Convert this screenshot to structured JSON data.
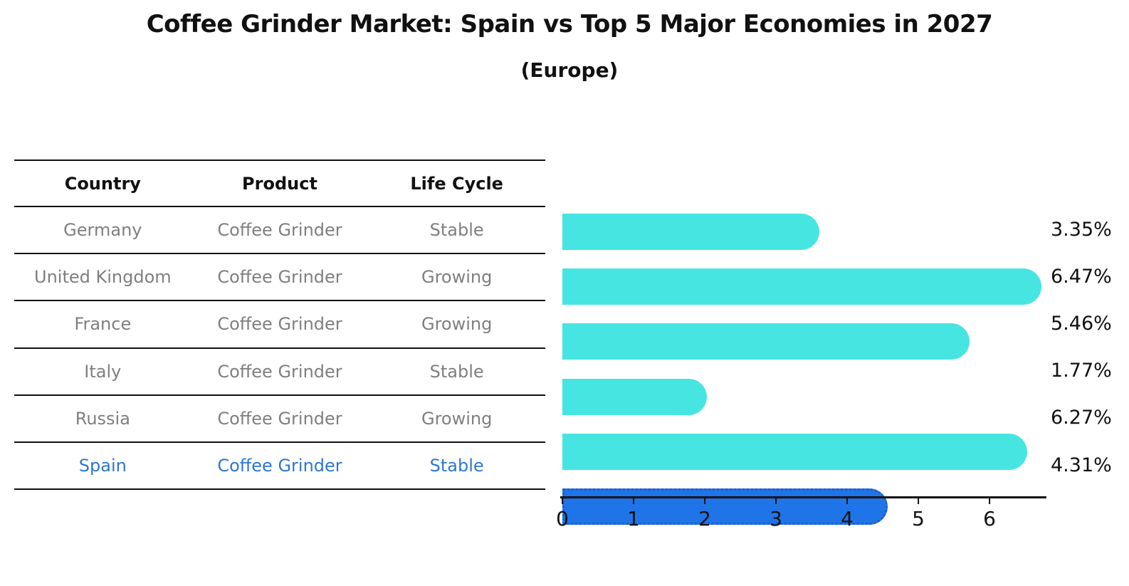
{
  "chart": {
    "title": "Coffee Grinder Market: Spain vs Top 5 Major Economies in 2027",
    "subtitle": "(Europe)"
  },
  "table": {
    "headers": [
      "Country",
      "Product",
      "Life Cycle"
    ],
    "rows": [
      {
        "country": "Germany",
        "product": "Coffee Grinder",
        "life_cycle": "Stable"
      },
      {
        "country": "United Kingdom",
        "product": "Coffee Grinder",
        "life_cycle": "Growing"
      },
      {
        "country": "France",
        "product": "Coffee Grinder",
        "life_cycle": "Growing"
      },
      {
        "country": "Italy",
        "product": "Coffee Grinder",
        "life_cycle": "Stable"
      },
      {
        "country": "Russia",
        "product": "Coffee Grinder",
        "life_cycle": "Growing"
      },
      {
        "country": "Spain",
        "product": "Coffee Grinder",
        "life_cycle": "Stable"
      }
    ]
  },
  "chart_data": {
    "type": "bar",
    "orientation": "horizontal",
    "title": "Coffee Grinder Market: Spain vs Top 5 Major Economies in 2027",
    "subtitle": "(Europe)",
    "categories": [
      "Germany",
      "United Kingdom",
      "France",
      "Italy",
      "Russia",
      "Spain"
    ],
    "values": [
      3.35,
      6.47,
      5.46,
      1.77,
      6.27,
      4.31
    ],
    "value_labels": [
      "3.35%",
      "6.47%",
      "5.46%",
      "1.77%",
      "6.27%",
      "4.31%"
    ],
    "highlight_index": 5,
    "highlight_category": "Spain",
    "xticks": [
      0,
      1,
      2,
      3,
      4,
      5,
      6
    ],
    "xlim": [
      0,
      6.8
    ],
    "grid": false,
    "legend": false
  },
  "colors": {
    "background": "#FFFFFF",
    "bar": "#46E5E2",
    "highlight_bar": "#1F75E8",
    "highlight_border": "#1D5ECC",
    "highlight_text": "#2D78CE",
    "row_text": "#7F7F7F",
    "header_text": "#111111",
    "line": "#111111",
    "value_text": "#111111"
  }
}
